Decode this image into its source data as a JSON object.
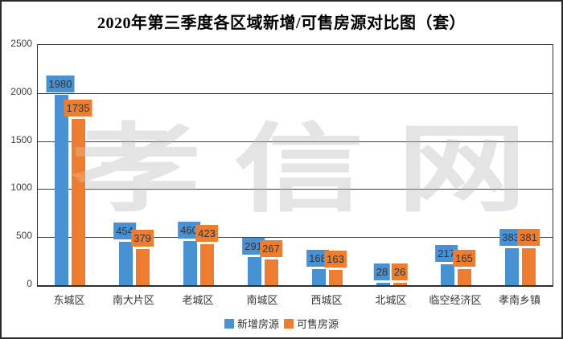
{
  "title": "2020年第三季度各区域新增/可售房源对比图（套）",
  "watermark": "孝信网",
  "axis": {
    "ytick_labels": [
      "0",
      "500",
      "1000",
      "1500",
      "2000",
      "2500"
    ]
  },
  "chart_data": {
    "type": "bar",
    "title": "2020年第三季度各区域新增/可售房源对比图（套）",
    "categories": [
      "东城区",
      "南大片区",
      "老城区",
      "南城区",
      "西城区",
      "北城区",
      "临空经济区",
      "孝南乡镇"
    ],
    "series": [
      {
        "name": "新增房源",
        "color": "#4a91d4",
        "values": [
          1980,
          454,
          460,
          291,
          168,
          28,
          217,
          383
        ]
      },
      {
        "name": "可售房源",
        "color": "#ed7d31",
        "values": [
          1735,
          379,
          423,
          267,
          163,
          26,
          165,
          381
        ]
      }
    ],
    "ylim": [
      0,
      2500
    ],
    "ytick_interval": 500,
    "grid": true,
    "legend_position": "bottom",
    "data_labels": true
  }
}
